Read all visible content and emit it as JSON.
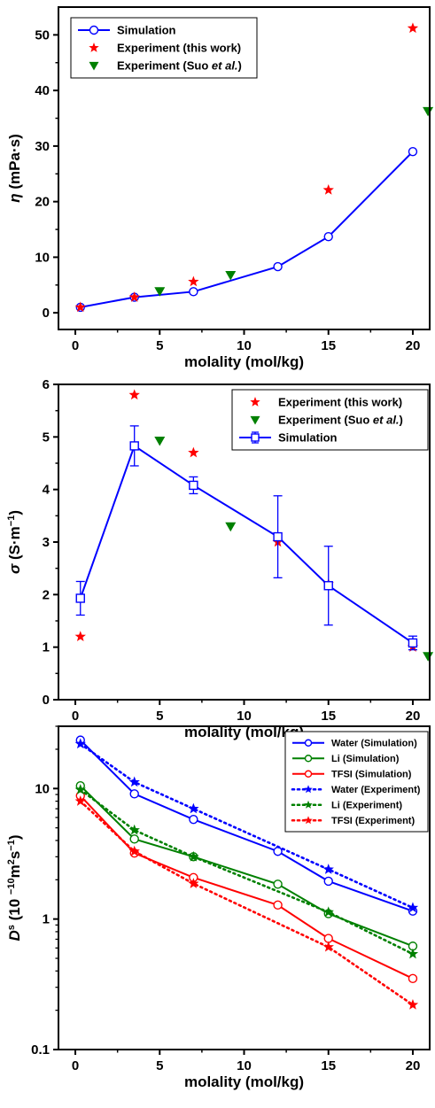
{
  "chart_data": [
    {
      "type": "line",
      "xlabel": "molality (mol/kg)",
      "ylabel": {
        "symbol": "η",
        "unit": " (mPa·s)"
      },
      "xlim": [
        -1,
        21
      ],
      "ylim": [
        -3,
        55
      ],
      "xticks": [
        0,
        5,
        10,
        15,
        20
      ],
      "yticks": [
        0,
        10,
        20,
        30,
        40,
        50
      ],
      "ylog": false,
      "legend_position": "top-left",
      "series": [
        {
          "name": "Simulation",
          "kind": "line-circle",
          "color": "#0000ff",
          "x": [
            0.3,
            3.5,
            7,
            12,
            15,
            20
          ],
          "y": [
            1.0,
            2.8,
            3.8,
            8.3,
            13.7,
            29.0
          ]
        },
        {
          "name": "Experiment (this work)",
          "kind": "star",
          "color": "#ff0000",
          "x": [
            0.3,
            3.5,
            7,
            15,
            20
          ],
          "y": [
            1.0,
            2.8,
            5.6,
            22.1,
            51.2
          ]
        },
        {
          "name": "Experiment (Suo et al.)",
          "name_parts": [
            "Experiment (Suo ",
            "et al.",
            ")"
          ],
          "kind": "triangle-down",
          "color": "#008000",
          "x": [
            5,
            9.2,
            20.9
          ],
          "y": [
            3.9,
            6.8,
            36.3
          ]
        }
      ]
    },
    {
      "type": "line",
      "xlabel": "molality (mol/kg)",
      "ylabel": {
        "symbol": "σ",
        "unit": " (S·m",
        "sup": "−1",
        "close": ")"
      },
      "xlim": [
        -1,
        21
      ],
      "ylim": [
        0,
        6
      ],
      "xticks": [
        0,
        5,
        10,
        15,
        20
      ],
      "yticks": [
        0,
        1,
        2,
        3,
        4,
        5,
        6
      ],
      "ylog": false,
      "legend_position": "top-right",
      "series": [
        {
          "name": "Experiment (this work)",
          "kind": "star",
          "color": "#ff0000",
          "x": [
            0.3,
            3.5,
            7,
            12,
            15,
            20
          ],
          "y": [
            1.2,
            5.8,
            4.7,
            3.0,
            2.2,
            1.0
          ]
        },
        {
          "name": "Experiment (Suo et al.)",
          "name_parts": [
            "Experiment (Suo ",
            "et al.",
            ")"
          ],
          "kind": "triangle-down",
          "color": "#008000",
          "x": [
            5,
            9.2,
            20.9
          ],
          "y": [
            4.93,
            3.3,
            0.83
          ]
        },
        {
          "name": "Simulation",
          "kind": "line-square",
          "color": "#0000ff",
          "x": [
            0.3,
            3.5,
            7,
            12,
            15,
            20
          ],
          "y": [
            1.93,
            4.83,
            4.08,
            3.1,
            2.17,
            1.08
          ],
          "err": [
            0.32,
            0.38,
            0.16,
            0.78,
            0.75,
            0.13
          ]
        }
      ]
    },
    {
      "type": "line",
      "xlabel": "molality (mol/kg)",
      "ylabel": {
        "symbol": "D",
        "symsup": "s",
        "unit": " (10 ",
        "sup": "−10",
        "unit2": "m",
        "sup2": "2",
        "unit3": "s",
        "sup3": "−1",
        "close": ")"
      },
      "xlim": [
        -1,
        21
      ],
      "ylim": [
        0.1,
        30
      ],
      "xticks": [
        0,
        5,
        10,
        15,
        20
      ],
      "yticks": [
        0.1,
        1,
        10
      ],
      "ytick_labels": [
        "0.1",
        "1",
        "10"
      ],
      "ylog": true,
      "legend_position": "top-right",
      "series": [
        {
          "name": "Water (Simulation)",
          "kind": "line-circle",
          "color": "#0000ff",
          "x": [
            0.3,
            3.5,
            7,
            12,
            15,
            20
          ],
          "y": [
            23.5,
            9.1,
            5.8,
            3.3,
            1.95,
            1.15
          ]
        },
        {
          "name": "Li (Simulation)",
          "kind": "line-circle",
          "color": "#008000",
          "x": [
            0.3,
            3.5,
            7,
            12,
            15,
            20
          ],
          "y": [
            10.5,
            4.1,
            3.0,
            1.85,
            1.1,
            0.62
          ]
        },
        {
          "name": "TFSI (Simulation)",
          "kind": "line-circle",
          "color": "#ff0000",
          "x": [
            0.3,
            3.5,
            7,
            12,
            15,
            20
          ],
          "y": [
            8.8,
            3.2,
            2.08,
            1.28,
            0.71,
            0.35
          ]
        },
        {
          "name": "Water (Experiment)",
          "kind": "dot-star",
          "color": "#0000ff",
          "x": [
            0.3,
            3.5,
            7,
            15,
            20
          ],
          "y": [
            22.0,
            11.2,
            7.0,
            2.4,
            1.22
          ]
        },
        {
          "name": "Li (Experiment)",
          "kind": "dot-star",
          "color": "#008000",
          "x": [
            0.3,
            3.5,
            7,
            15,
            20
          ],
          "y": [
            9.8,
            4.8,
            3.0,
            1.13,
            0.54
          ]
        },
        {
          "name": "TFSI (Experiment)",
          "kind": "dot-star",
          "color": "#ff0000",
          "x": [
            0.3,
            3.5,
            7,
            15,
            20
          ],
          "y": [
            8.0,
            3.3,
            1.87,
            0.61,
            0.22
          ]
        }
      ]
    }
  ]
}
